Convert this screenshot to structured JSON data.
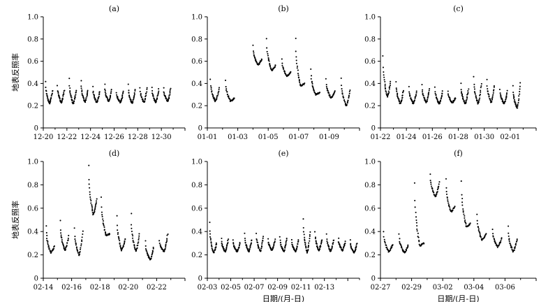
{
  "chart_data": [
    {
      "type": "scatter",
      "title": "(a)",
      "ylabel": "地表反照率",
      "xlabel": "",
      "ylim": [
        0,
        1.0
      ],
      "yticks": [
        "0",
        "0.2",
        "0.4",
        "0.6",
        "0.8",
        "1.0"
      ],
      "x_tick_labels": [
        "12-20",
        "12-22",
        "12-24",
        "12-26",
        "12-28",
        "12-30"
      ],
      "xlim": [
        0,
        12
      ],
      "days": [
        {
          "start": 0.2,
          "max": 0.42,
          "min": 0.22,
          "end": 0.34
        },
        {
          "start": 1.2,
          "max": 0.38,
          "min": 0.23,
          "end": 0.34
        },
        {
          "start": 2.2,
          "max": 0.44,
          "min": 0.22,
          "end": 0.34
        },
        {
          "start": 3.2,
          "max": 0.43,
          "min": 0.23,
          "end": 0.34
        },
        {
          "start": 4.2,
          "max": 0.37,
          "min": 0.23,
          "end": 0.33
        },
        {
          "start": 5.2,
          "max": 0.39,
          "min": 0.24,
          "end": 0.34
        },
        {
          "start": 6.2,
          "max": 0.32,
          "min": 0.23,
          "end": 0.33
        },
        {
          "start": 7.2,
          "max": 0.39,
          "min": 0.22,
          "end": 0.35
        },
        {
          "start": 8.2,
          "max": 0.36,
          "min": 0.23,
          "end": 0.36
        },
        {
          "start": 9.2,
          "max": 0.37,
          "min": 0.23,
          "end": 0.35
        },
        {
          "start": 10.2,
          "max": 0.36,
          "min": 0.24,
          "end": 0.35
        }
      ]
    },
    {
      "type": "scatter",
      "title": "(b)",
      "ylabel": "",
      "xlabel": "",
      "ylim": [
        0,
        1.0
      ],
      "yticks": [
        "0",
        "0.2",
        "0.4",
        "0.6",
        "0.8",
        "1.0"
      ],
      "x_tick_labels": [
        "01-01",
        "01-03",
        "01-05",
        "01-07",
        "01-09"
      ],
      "xlim": [
        0,
        10
      ],
      "days": [
        {
          "start": 0.2,
          "max": 0.44,
          "min": 0.24,
          "end": 0.36
        },
        {
          "start": 1.2,
          "max": 0.43,
          "min": 0.24,
          "end": 0.27
        },
        {
          "start": 3.0,
          "max": 0.74,
          "min": 0.57,
          "end": 0.62
        },
        {
          "start": 3.9,
          "max": 0.8,
          "min": 0.52,
          "end": 0.56
        },
        {
          "start": 4.9,
          "max": 0.62,
          "min": 0.47,
          "end": 0.5
        },
        {
          "start": 5.8,
          "max": 0.81,
          "min": 0.38,
          "end": 0.4
        },
        {
          "start": 6.8,
          "max": 0.53,
          "min": 0.3,
          "end": 0.32
        },
        {
          "start": 7.8,
          "max": 0.44,
          "min": 0.27,
          "end": 0.33
        },
        {
          "start": 8.8,
          "max": 0.45,
          "min": 0.2,
          "end": 0.34
        }
      ]
    },
    {
      "type": "scatter",
      "title": "(c)",
      "ylabel": "",
      "xlabel": "",
      "ylim": [
        0,
        1.0
      ],
      "yticks": [
        "0",
        "0.2",
        "0.4",
        "0.6",
        "0.8",
        "1.0"
      ],
      "x_tick_labels": [
        "01-22",
        "01-24",
        "01-26",
        "01-28",
        "01-30",
        "02-01"
      ],
      "xlim": [
        0,
        12
      ],
      "days": [
        {
          "start": 0.2,
          "max": 0.65,
          "min": 0.28,
          "end": 0.42
        },
        {
          "start": 1.2,
          "max": 0.42,
          "min": 0.22,
          "end": 0.34
        },
        {
          "start": 2.2,
          "max": 0.37,
          "min": 0.22,
          "end": 0.33
        },
        {
          "start": 3.2,
          "max": 0.39,
          "min": 0.23,
          "end": 0.35
        },
        {
          "start": 4.2,
          "max": 0.37,
          "min": 0.22,
          "end": 0.33
        },
        {
          "start": 5.2,
          "max": 0.33,
          "min": 0.23,
          "end": 0.27
        },
        {
          "start": 6.2,
          "max": 0.4,
          "min": 0.22,
          "end": 0.35
        },
        {
          "start": 7.2,
          "max": 0.46,
          "min": 0.22,
          "end": 0.4
        },
        {
          "start": 8.2,
          "max": 0.43,
          "min": 0.23,
          "end": 0.38
        },
        {
          "start": 9.2,
          "max": 0.35,
          "min": 0.22,
          "end": 0.33
        },
        {
          "start": 10.2,
          "max": 0.38,
          "min": 0.18,
          "end": 0.4
        }
      ]
    },
    {
      "type": "scatter",
      "title": "(d)",
      "ylabel": "地表反照率",
      "xlabel": "",
      "ylim": [
        0,
        1.0
      ],
      "yticks": [
        "0",
        "0.2",
        "0.4",
        "0.6",
        "0.8",
        "1.0"
      ],
      "x_tick_labels": [
        "02-14",
        "02-16",
        "02-18",
        "02-20",
        "02-22"
      ],
      "xlim": [
        0,
        10
      ],
      "days": [
        {
          "start": 0.2,
          "max": 0.45,
          "min": 0.22,
          "end": 0.27
        },
        {
          "start": 1.2,
          "max": 0.49,
          "min": 0.24,
          "end": 0.36
        },
        {
          "start": 2.2,
          "max": 0.43,
          "min": 0.2,
          "end": 0.4
        },
        {
          "start": 3.2,
          "max": 0.97,
          "min": 0.55,
          "end": 0.68
        },
        {
          "start": 4.1,
          "max": 0.7,
          "min": 0.37,
          "end": 0.38
        },
        {
          "start": 5.2,
          "max": 0.53,
          "min": 0.24,
          "end": 0.34
        },
        {
          "start": 6.2,
          "max": 0.55,
          "min": 0.23,
          "end": 0.38
        },
        {
          "start": 7.2,
          "max": 0.32,
          "min": 0.16,
          "end": 0.26
        },
        {
          "start": 8.2,
          "max": 0.32,
          "min": 0.23,
          "end": 0.38
        }
      ]
    },
    {
      "type": "scatter",
      "title": "(e)",
      "ylabel": "",
      "xlabel": "日期/(月-日)",
      "ylim": [
        0,
        1.0
      ],
      "yticks": [
        "0",
        "0.2",
        "0.4",
        "0.6",
        "0.8",
        "1.0"
      ],
      "x_tick_labels": [
        "02-03",
        "02-05",
        "02-07",
        "02-09",
        "02-11",
        "02-13"
      ],
      "xlim": [
        0,
        13
      ],
      "days": [
        {
          "start": 0.2,
          "max": 0.48,
          "min": 0.22,
          "end": 0.3
        },
        {
          "start": 1.2,
          "max": 0.34,
          "min": 0.23,
          "end": 0.33
        },
        {
          "start": 2.2,
          "max": 0.33,
          "min": 0.23,
          "end": 0.3
        },
        {
          "start": 3.2,
          "max": 0.38,
          "min": 0.23,
          "end": 0.33
        },
        {
          "start": 4.2,
          "max": 0.38,
          "min": 0.23,
          "end": 0.36
        },
        {
          "start": 5.2,
          "max": 0.34,
          "min": 0.24,
          "end": 0.33
        },
        {
          "start": 6.2,
          "max": 0.36,
          "min": 0.23,
          "end": 0.34
        },
        {
          "start": 7.2,
          "max": 0.33,
          "min": 0.23,
          "end": 0.33
        },
        {
          "start": 8.2,
          "max": 0.51,
          "min": 0.22,
          "end": 0.4
        },
        {
          "start": 9.2,
          "max": 0.4,
          "min": 0.24,
          "end": 0.33
        },
        {
          "start": 10.2,
          "max": 0.38,
          "min": 0.23,
          "end": 0.33
        },
        {
          "start": 11.2,
          "max": 0.34,
          "min": 0.24,
          "end": 0.31
        },
        {
          "start": 12.2,
          "max": 0.33,
          "min": 0.22,
          "end": 0.3
        }
      ]
    },
    {
      "type": "scatter",
      "title": "(f)",
      "ylabel": "",
      "xlabel": "日期/(月-日)",
      "ylim": [
        0,
        1.0
      ],
      "yticks": [
        "0",
        "0.2",
        "0.4",
        "0.6",
        "0.8",
        "1.0"
      ],
      "x_tick_labels": [
        "02-27",
        "02-29",
        "03-02",
        "03-04",
        "03-06"
      ],
      "xlim": [
        0,
        10
      ],
      "days": [
        {
          "start": 0.2,
          "max": 0.4,
          "min": 0.23,
          "end": 0.29
        },
        {
          "start": 1.2,
          "max": 0.38,
          "min": 0.22,
          "end": 0.28
        },
        {
          "start": 2.2,
          "max": 0.82,
          "min": 0.28,
          "end": 0.3
        },
        {
          "start": 3.2,
          "max": 0.89,
          "min": 0.7,
          "end": 0.82
        },
        {
          "start": 4.2,
          "max": 0.85,
          "min": 0.57,
          "end": 0.62
        },
        {
          "start": 5.2,
          "max": 0.83,
          "min": 0.44,
          "end": 0.47
        },
        {
          "start": 6.2,
          "max": 0.55,
          "min": 0.33,
          "end": 0.38
        },
        {
          "start": 7.2,
          "max": 0.42,
          "min": 0.27,
          "end": 0.34
        },
        {
          "start": 8.2,
          "max": 0.44,
          "min": 0.23,
          "end": 0.34
        }
      ]
    }
  ]
}
